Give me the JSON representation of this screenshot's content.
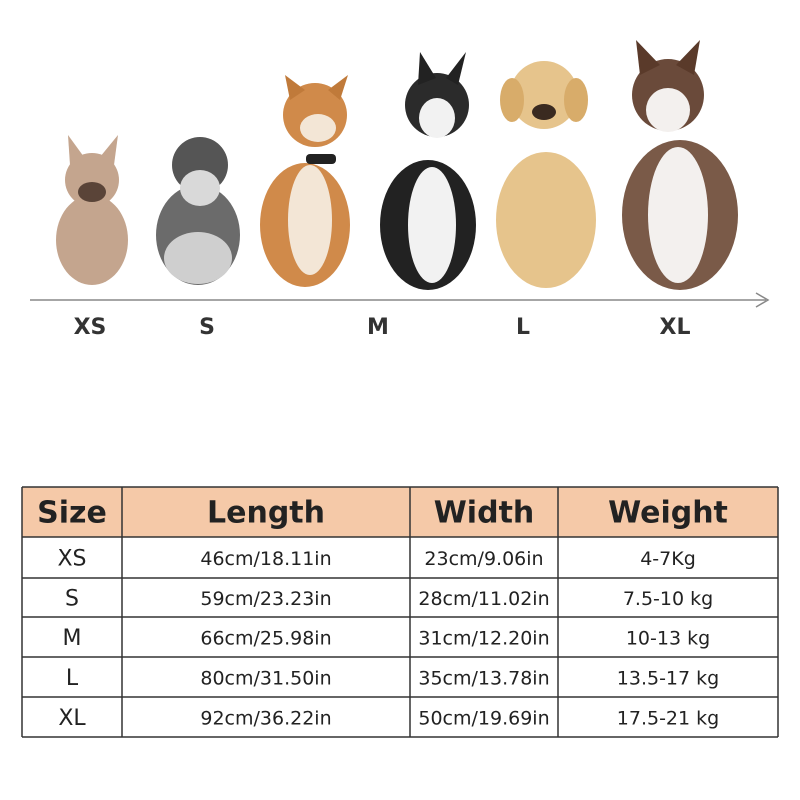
{
  "size_labels": [
    "XS",
    "S",
    "M",
    "L",
    "XL"
  ],
  "table": {
    "header": [
      "Size",
      "Length",
      "Width",
      "Weight"
    ],
    "rows": [
      [
        "XS",
        "46cm/18.11in",
        "23cm/9.06in",
        "4-7Kg"
      ],
      [
        "S",
        "59cm/23.23in",
        "28cm/11.02in",
        "7.5-10 kg"
      ],
      [
        "M",
        "66cm/25.98in",
        "31cm/12.20in",
        "10-13 kg"
      ],
      [
        "L",
        "80cm/31.50in",
        "35cm/13.78in",
        "13.5-17 kg"
      ],
      [
        "XL",
        "92cm/36.22in",
        "50cm/19.69in",
        "17.5-21 kg"
      ]
    ]
  }
}
